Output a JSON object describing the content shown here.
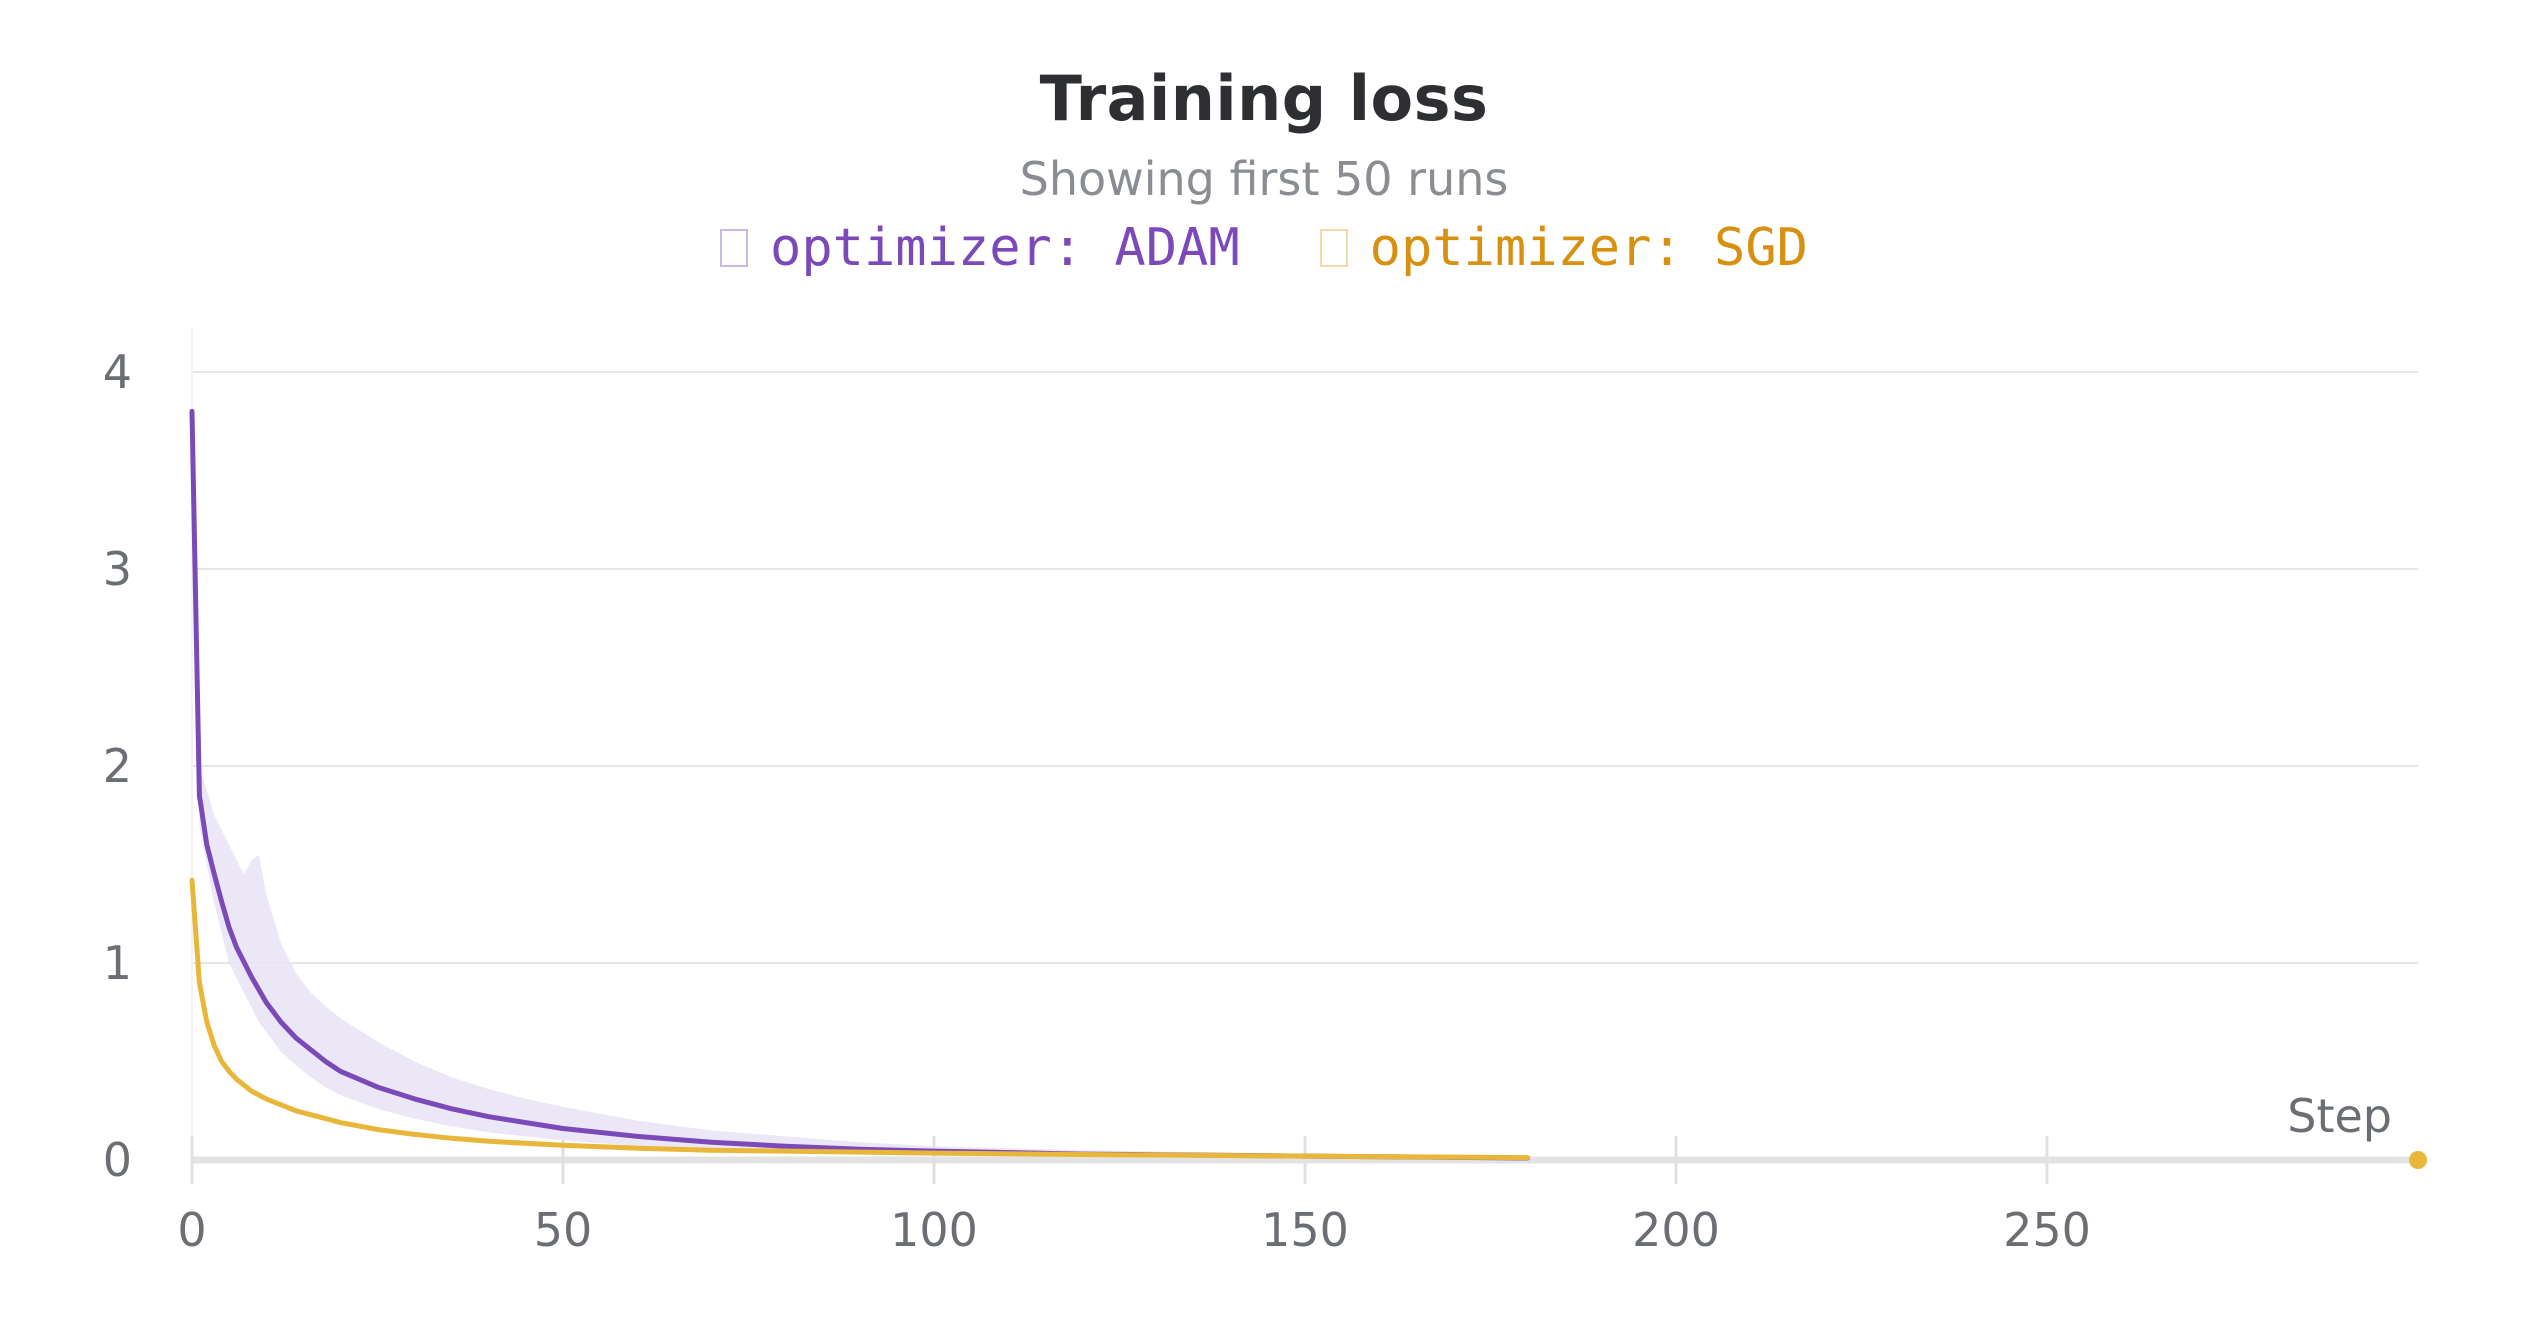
{
  "chart_data": {
    "type": "line",
    "title": "Training loss",
    "subtitle": "Showing first 50 runs",
    "xlabel": "Step",
    "ylabel": "",
    "xlim": [
      0,
      300
    ],
    "ylim": [
      0,
      4
    ],
    "x_ticks": [
      0,
      50,
      100,
      150,
      200,
      250
    ],
    "y_ticks": [
      0,
      1,
      2,
      3,
      4
    ],
    "grid": true,
    "legend_position": "top-center",
    "series": [
      {
        "name": "optimizer: ADAM",
        "color": "#7b4ab8",
        "band_color": "#e9e3f4",
        "points": [
          [
            0,
            3.8
          ],
          [
            1,
            1.85
          ],
          [
            2,
            1.6
          ],
          [
            3,
            1.45
          ],
          [
            4,
            1.31
          ],
          [
            5,
            1.18
          ],
          [
            6,
            1.08
          ],
          [
            8,
            0.93
          ],
          [
            10,
            0.8
          ],
          [
            12,
            0.7
          ],
          [
            14,
            0.62
          ],
          [
            16,
            0.56
          ],
          [
            18,
            0.5
          ],
          [
            20,
            0.45
          ],
          [
            25,
            0.37
          ],
          [
            30,
            0.31
          ],
          [
            35,
            0.26
          ],
          [
            40,
            0.22
          ],
          [
            45,
            0.19
          ],
          [
            50,
            0.16
          ],
          [
            60,
            0.12
          ],
          [
            70,
            0.09
          ],
          [
            80,
            0.07
          ],
          [
            90,
            0.055
          ],
          [
            100,
            0.045
          ],
          [
            120,
            0.03
          ],
          [
            150,
            0.02
          ],
          [
            180,
            0.01
          ]
        ],
        "band_upper": [
          [
            1,
            2.0
          ],
          [
            3,
            1.75
          ],
          [
            5,
            1.6
          ],
          [
            7,
            1.45
          ],
          [
            8,
            1.52
          ],
          [
            9,
            1.55
          ],
          [
            10,
            1.35
          ],
          [
            12,
            1.1
          ],
          [
            14,
            0.95
          ],
          [
            16,
            0.85
          ],
          [
            18,
            0.78
          ],
          [
            20,
            0.72
          ],
          [
            25,
            0.6
          ],
          [
            30,
            0.5
          ],
          [
            35,
            0.42
          ],
          [
            40,
            0.36
          ],
          [
            45,
            0.31
          ],
          [
            50,
            0.27
          ],
          [
            60,
            0.2
          ],
          [
            70,
            0.15
          ],
          [
            80,
            0.12
          ],
          [
            90,
            0.09
          ],
          [
            100,
            0.07
          ],
          [
            120,
            0.05
          ],
          [
            150,
            0.03
          ],
          [
            180,
            0.012
          ]
        ],
        "band_lower": [
          [
            1,
            1.7
          ],
          [
            3,
            1.3
          ],
          [
            5,
            1.0
          ],
          [
            7,
            0.85
          ],
          [
            9,
            0.7
          ],
          [
            10,
            0.65
          ],
          [
            12,
            0.55
          ],
          [
            14,
            0.48
          ],
          [
            16,
            0.42
          ],
          [
            18,
            0.37
          ],
          [
            20,
            0.33
          ],
          [
            25,
            0.26
          ],
          [
            30,
            0.21
          ],
          [
            35,
            0.17
          ],
          [
            40,
            0.14
          ],
          [
            45,
            0.12
          ],
          [
            50,
            0.1
          ],
          [
            60,
            0.07
          ],
          [
            70,
            0.05
          ],
          [
            80,
            0.04
          ],
          [
            90,
            0.03
          ],
          [
            100,
            0.025
          ],
          [
            120,
            0.018
          ],
          [
            150,
            0.01
          ],
          [
            180,
            0.005
          ]
        ]
      },
      {
        "name": "optimizer: SGD",
        "color": "#e8b73a",
        "legend_color": "#d7900f",
        "points": [
          [
            0,
            1.42
          ],
          [
            1,
            0.9
          ],
          [
            2,
            0.7
          ],
          [
            3,
            0.58
          ],
          [
            4,
            0.5
          ],
          [
            5,
            0.45
          ],
          [
            6,
            0.41
          ],
          [
            8,
            0.35
          ],
          [
            10,
            0.31
          ],
          [
            12,
            0.28
          ],
          [
            14,
            0.25
          ],
          [
            16,
            0.23
          ],
          [
            18,
            0.21
          ],
          [
            20,
            0.19
          ],
          [
            25,
            0.155
          ],
          [
            30,
            0.13
          ],
          [
            35,
            0.11
          ],
          [
            40,
            0.095
          ],
          [
            50,
            0.075
          ],
          [
            60,
            0.06
          ],
          [
            70,
            0.05
          ],
          [
            80,
            0.045
          ],
          [
            90,
            0.04
          ],
          [
            100,
            0.035
          ],
          [
            120,
            0.028
          ],
          [
            150,
            0.02
          ],
          [
            180,
            0.012
          ]
        ]
      }
    ]
  }
}
